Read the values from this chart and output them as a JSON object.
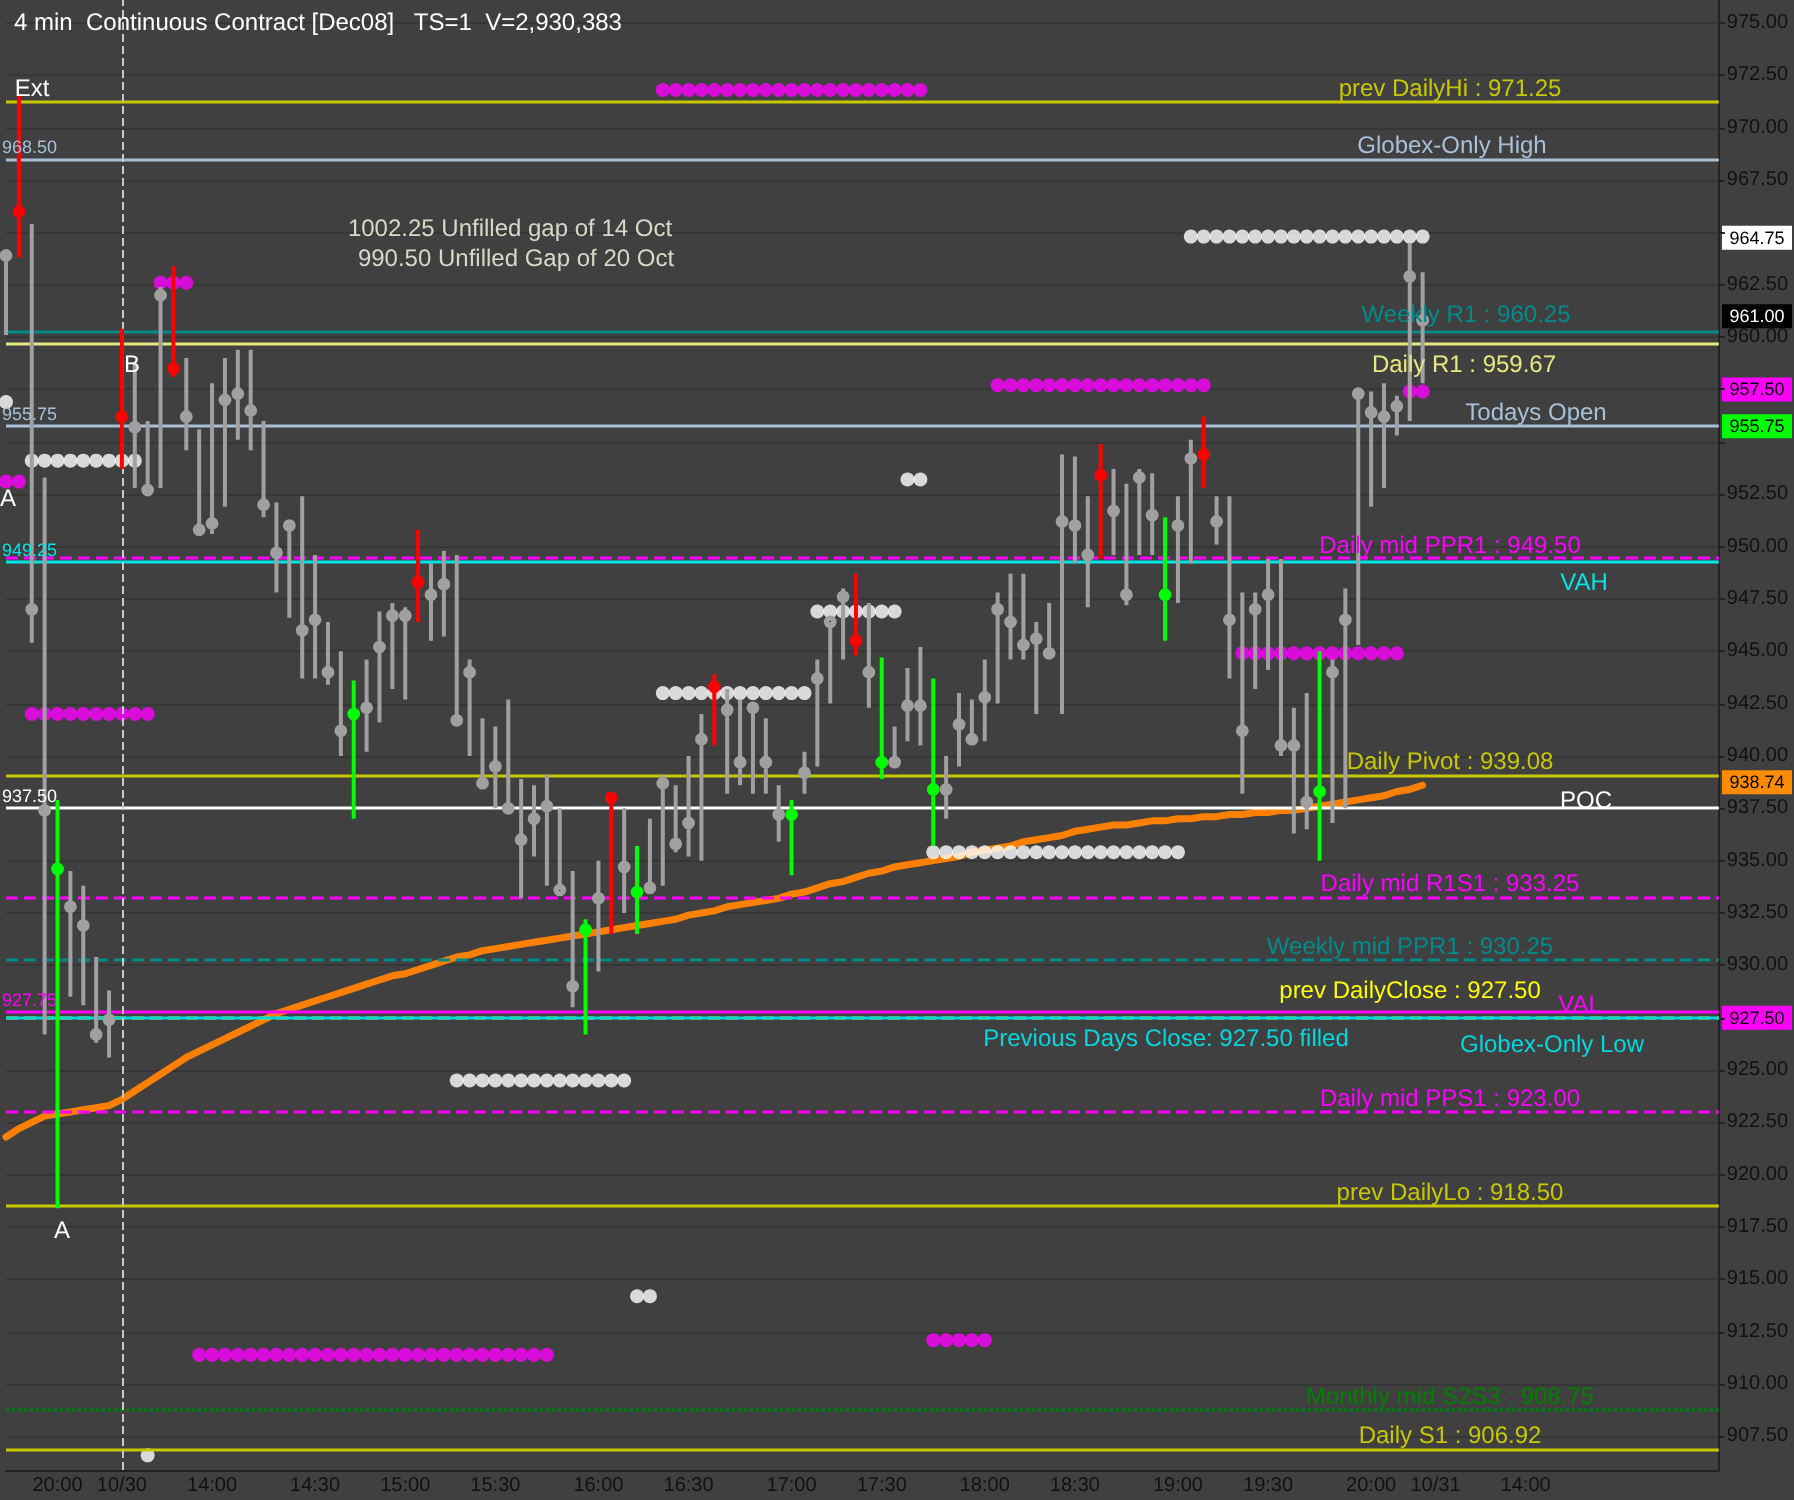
{
  "chart_data": {
    "type": "candlestick",
    "title": "4 min  Continuous Contract [Dec08]   TS=1  V=2,930,383",
    "categories": [
      null,
      null,
      null,
      null,
      "20:00",
      null,
      null,
      null,
      null,
      "10/30",
      null,
      null,
      null,
      null,
      null,
      null,
      "14:00",
      null,
      null,
      null,
      null,
      null,
      null,
      null,
      "14:30",
      null,
      null,
      null,
      null,
      null,
      null,
      "15:00",
      null,
      null,
      null,
      null,
      null,
      null,
      "15:30",
      null,
      null,
      null,
      null,
      null,
      null,
      null,
      "16:00",
      null,
      null,
      null,
      null,
      null,
      null,
      "16:30",
      null,
      null,
      null,
      null,
      null,
      null,
      null,
      "17:00",
      null,
      null,
      null,
      null,
      null,
      null,
      "17:30",
      null,
      null,
      null,
      null,
      null,
      null,
      null,
      "18:00",
      null,
      null,
      null,
      null,
      null,
      null,
      "18:30",
      null,
      null,
      null,
      null,
      null,
      null,
      null,
      "19:00",
      null,
      null,
      null,
      null,
      null,
      null,
      "19:30",
      null,
      null,
      null,
      null,
      null,
      null,
      null,
      "20:00",
      null,
      null,
      null,
      null,
      "10/31",
      null,
      null,
      null,
      null,
      null,
      null,
      "14:00",
      null,
      null,
      null,
      null,
      null,
      null,
      null,
      null,
      null,
      null,
      null,
      null,
      null,
      null,
      null
    ],
    "series": [
      {
        "ohlc": [
          [
            963.9,
            964.0,
            960.1,
            963.9
          ],
          [
            966.0,
            971.6,
            963.8,
            966.0
          ],
          [
            947.0,
            965.4,
            945.4,
            947.0
          ],
          [
            937.4,
            953.3,
            926.7,
            937.4
          ],
          [
            934.6,
            937.9,
            918.4,
            934.6
          ],
          [
            932.8,
            934.5,
            928.5,
            932.8
          ],
          [
            931.9,
            933.8,
            928.1,
            931.9
          ],
          [
            926.7,
            930.4,
            926.3,
            926.7
          ],
          [
            927.4,
            928.8,
            925.6,
            927.4
          ],
          [
            956.2,
            960.4,
            953.7,
            956.2
          ],
          [
            955.7,
            958.8,
            952.8,
            955.7
          ],
          [
            952.7,
            956.0,
            952.6,
            952.7
          ],
          [
            962.0,
            962.4,
            952.8,
            962.0
          ],
          [
            958.5,
            963.4,
            958.1,
            958.5
          ],
          [
            956.2,
            959.0,
            954.6,
            956.2
          ],
          [
            950.8,
            955.6,
            950.6,
            950.8
          ],
          [
            951.1,
            957.8,
            950.6,
            951.1
          ],
          [
            957.0,
            959.0,
            951.9,
            957.0
          ],
          [
            957.3,
            959.4,
            955.1,
            957.3
          ],
          [
            956.5,
            959.4,
            954.6,
            956.5
          ],
          [
            952.0,
            956.0,
            951.4,
            952.0
          ],
          [
            949.7,
            952.1,
            947.8,
            949.7
          ],
          [
            951.0,
            951.2,
            946.6,
            951.0
          ],
          [
            946.0,
            952.4,
            943.7,
            946.0
          ],
          [
            946.5,
            949.6,
            943.7,
            946.5
          ],
          [
            944.0,
            946.4,
            943.4,
            944.0
          ],
          [
            941.2,
            945.0,
            940.0,
            941.2
          ],
          [
            942.0,
            943.6,
            937.0,
            942.0
          ],
          [
            942.3,
            944.6,
            940.2,
            942.3
          ],
          [
            945.2,
            946.9,
            941.6,
            945.2
          ],
          [
            946.7,
            947.3,
            943.2,
            946.7
          ],
          [
            946.7,
            947.1,
            942.7,
            946.7
          ],
          [
            948.3,
            950.8,
            946.4,
            948.3
          ],
          [
            947.7,
            949.2,
            945.5,
            947.7
          ],
          [
            948.2,
            949.8,
            945.7,
            948.2
          ],
          [
            941.7,
            949.6,
            941.4,
            941.7
          ],
          [
            944.0,
            944.6,
            940.0,
            944.0
          ],
          [
            938.7,
            941.8,
            938.6,
            938.7
          ],
          [
            939.5,
            941.4,
            937.5,
            939.5
          ],
          [
            937.5,
            942.7,
            937.3,
            937.5
          ],
          [
            936.0,
            938.9,
            933.2,
            936.0
          ],
          [
            937.0,
            938.6,
            935.2,
            937.0
          ],
          [
            937.6,
            939.1,
            933.8,
            937.6
          ],
          [
            933.6,
            937.5,
            933.6,
            933.6
          ],
          [
            929.0,
            934.5,
            928.0,
            929.0
          ],
          [
            931.7,
            932.2,
            926.7,
            931.7
          ],
          [
            933.2,
            935.0,
            929.7,
            933.2
          ],
          [
            938.0,
            938.2,
            931.5,
            938.0
          ],
          [
            934.7,
            937.5,
            932.5,
            934.7
          ],
          [
            933.5,
            935.7,
            931.5,
            933.5
          ],
          [
            933.7,
            937.0,
            933.5,
            933.7
          ],
          [
            938.7,
            939.1,
            933.8,
            938.7
          ],
          [
            935.8,
            938.6,
            935.4,
            935.8
          ],
          [
            936.8,
            940.0,
            935.2,
            936.8
          ],
          [
            940.8,
            942.0,
            935.0,
            940.8
          ],
          [
            943.3,
            943.9,
            940.5,
            943.3
          ],
          [
            942.2,
            943.2,
            938.2,
            942.2
          ],
          [
            939.7,
            942.7,
            938.6,
            939.7
          ],
          [
            942.3,
            942.5,
            938.2,
            942.3
          ],
          [
            939.7,
            941.8,
            938.2,
            939.7
          ],
          [
            937.2,
            938.6,
            935.9,
            937.2
          ],
          [
            937.2,
            937.9,
            934.3,
            937.2
          ],
          [
            939.2,
            940.2,
            938.2,
            939.2
          ],
          [
            943.7,
            944.6,
            939.5,
            943.7
          ],
          [
            946.4,
            946.4,
            942.5,
            946.4
          ],
          [
            947.6,
            948.0,
            944.6,
            947.6
          ],
          [
            945.5,
            948.7,
            944.8,
            945.5
          ],
          [
            944.0,
            947.3,
            942.3,
            944.0
          ],
          [
            939.7,
            944.7,
            938.9,
            939.7
          ],
          [
            939.7,
            941.4,
            939.5,
            939.7
          ],
          [
            942.4,
            944.2,
            940.7,
            942.4
          ],
          [
            942.4,
            945.2,
            940.5,
            942.4
          ],
          [
            938.4,
            943.7,
            935.7,
            938.4
          ],
          [
            938.4,
            940.0,
            937.0,
            938.4
          ],
          [
            941.5,
            943.0,
            939.5,
            941.5
          ],
          [
            940.8,
            942.7,
            940.5,
            940.8
          ],
          [
            942.8,
            944.6,
            940.7,
            942.8
          ],
          [
            947.0,
            947.8,
            942.5,
            947.0
          ],
          [
            946.4,
            948.7,
            944.6,
            946.4
          ],
          [
            945.3,
            948.7,
            944.6,
            945.3
          ],
          [
            945.6,
            946.4,
            942.0,
            945.6
          ],
          [
            944.9,
            947.3,
            944.8,
            944.9
          ],
          [
            951.2,
            954.4,
            942.0,
            951.2
          ],
          [
            951.0,
            954.3,
            949.2,
            951.0
          ],
          [
            949.6,
            952.4,
            947.1,
            949.6
          ],
          [
            953.4,
            954.9,
            949.4,
            953.4
          ],
          [
            951.7,
            953.7,
            949.6,
            951.7
          ],
          [
            947.7,
            953.0,
            947.2,
            947.7
          ],
          [
            953.3,
            953.7,
            949.6,
            953.3
          ],
          [
            951.5,
            953.5,
            949.6,
            951.5
          ],
          [
            947.7,
            951.4,
            945.5,
            947.7
          ],
          [
            951.0,
            952.4,
            947.3,
            951.0
          ],
          [
            954.2,
            955.1,
            949.2,
            954.2
          ],
          [
            954.4,
            956.2,
            952.8,
            954.4
          ],
          [
            951.2,
            952.4,
            950.1,
            951.2
          ],
          [
            946.5,
            952.4,
            943.7,
            946.5
          ],
          [
            941.2,
            947.8,
            938.2,
            941.2
          ],
          [
            947.0,
            947.8,
            943.2,
            947.0
          ],
          [
            947.7,
            949.4,
            944.1,
            947.7
          ],
          [
            940.5,
            949.4,
            940.0,
            940.5
          ],
          [
            940.5,
            942.3,
            936.3,
            940.5
          ],
          [
            937.8,
            943.0,
            936.5,
            937.8
          ],
          [
            938.3,
            945.0,
            935.0,
            938.3
          ],
          [
            944.0,
            944.6,
            936.8,
            944.0
          ],
          [
            946.5,
            948.0,
            937.5,
            946.5
          ],
          [
            957.3,
            957.4,
            945.3,
            957.3
          ],
          [
            956.4,
            957.4,
            951.9,
            956.4
          ],
          [
            956.2,
            957.8,
            952.8,
            956.2
          ],
          [
            956.7,
            957.2,
            955.3,
            956.7
          ],
          [
            962.9,
            964.5,
            956.0,
            962.9
          ],
          [
            960.8,
            963.1,
            957.8,
            960.8
          ],
          null,
          null,
          null,
          null,
          null,
          null,
          null,
          null,
          null,
          null,
          null,
          null,
          null,
          null,
          null,
          null,
          null,
          null,
          null,
          null,
          null,
          null,
          null
        ],
        "colors": [
          "#a0a0a0",
          "#ff0000",
          "#a0a0a0",
          "#a0a0a0",
          "#00ff00",
          "#a0a0a0",
          "#a0a0a0",
          "#a0a0a0",
          "#a0a0a0",
          "#ff0000",
          "#a0a0a0",
          "#a0a0a0",
          "#a0a0a0",
          "#ff0000",
          "#a0a0a0",
          "#a0a0a0",
          "#a0a0a0",
          "#a0a0a0",
          "#a0a0a0",
          "#a0a0a0",
          "#a0a0a0",
          "#a0a0a0",
          "#a0a0a0",
          "#a0a0a0",
          "#a0a0a0",
          "#a0a0a0",
          "#a0a0a0",
          "#00ff00",
          "#a0a0a0",
          "#a0a0a0",
          "#a0a0a0",
          "#a0a0a0",
          "#ff0000",
          "#a0a0a0",
          "#a0a0a0",
          "#a0a0a0",
          "#a0a0a0",
          "#a0a0a0",
          "#a0a0a0",
          "#a0a0a0",
          "#a0a0a0",
          "#a0a0a0",
          "#a0a0a0",
          "#a0a0a0",
          "#a0a0a0",
          "#00ff00",
          "#a0a0a0",
          "#ff0000",
          "#a0a0a0",
          "#00ff00",
          "#a0a0a0",
          "#a0a0a0",
          "#a0a0a0",
          "#a0a0a0",
          "#a0a0a0",
          "#ff0000",
          "#a0a0a0",
          "#a0a0a0",
          "#a0a0a0",
          "#a0a0a0",
          "#a0a0a0",
          "#00ff00",
          "#a0a0a0",
          "#a0a0a0",
          "#a0a0a0",
          "#a0a0a0",
          "#ff0000",
          "#a0a0a0",
          "#00ff00",
          "#a0a0a0",
          "#a0a0a0",
          "#a0a0a0",
          "#00ff00",
          "#a0a0a0",
          "#a0a0a0",
          "#a0a0a0",
          "#a0a0a0",
          "#a0a0a0",
          "#a0a0a0",
          "#a0a0a0",
          "#a0a0a0",
          "#a0a0a0",
          "#a0a0a0",
          "#a0a0a0",
          "#a0a0a0",
          "#ff0000",
          "#a0a0a0",
          "#a0a0a0",
          "#a0a0a0",
          "#a0a0a0",
          "#00ff00",
          "#a0a0a0",
          "#a0a0a0",
          "#ff0000",
          "#a0a0a0",
          "#a0a0a0",
          "#a0a0a0",
          "#a0a0a0",
          "#a0a0a0",
          "#a0a0a0",
          "#a0a0a0",
          "#a0a0a0",
          "#00ff00",
          "#a0a0a0",
          "#a0a0a0",
          "#a0a0a0",
          "#a0a0a0",
          "#a0a0a0",
          "#a0a0a0",
          "#a0a0a0",
          "#a0a0a0",
          null,
          null,
          null,
          null,
          null,
          null,
          null,
          null,
          null,
          null,
          null,
          null,
          null,
          null,
          null,
          null,
          null,
          null,
          null,
          null,
          null,
          null,
          null
        ]
      },
      {
        "type": "line",
        "color": "#ff8000",
        "marker": "none",
        "values": [
          921.8,
          922.2,
          922.5,
          922.8,
          922.9,
          923.0,
          923.1,
          923.2,
          923.3,
          923.6,
          924.0,
          924.4,
          924.8,
          925.2,
          925.6,
          925.9,
          926.2,
          926.5,
          926.8,
          927.1,
          927.4,
          927.7,
          927.9,
          928.1,
          928.3,
          928.5,
          928.7,
          928.9,
          929.1,
          929.3,
          929.5,
          929.6,
          929.8,
          930.0,
          930.2,
          930.4,
          930.5,
          930.7,
          930.8,
          930.9,
          931.0,
          931.1,
          931.2,
          931.3,
          931.4,
          931.5,
          931.6,
          931.7,
          931.8,
          931.9,
          932.0,
          932.1,
          932.2,
          932.4,
          932.5,
          932.6,
          932.8,
          932.9,
          933.0,
          933.1,
          933.2,
          933.4,
          933.5,
          933.7,
          933.9,
          934.0,
          934.2,
          934.4,
          934.5,
          934.7,
          934.8,
          934.9,
          935.0,
          935.1,
          935.2,
          935.4,
          935.5,
          935.6,
          935.7,
          935.9,
          936.0,
          936.1,
          936.2,
          936.4,
          936.5,
          936.6,
          936.7,
          936.7,
          936.8,
          936.9,
          936.9,
          937.0,
          937.0,
          937.1,
          937.1,
          937.2,
          937.2,
          937.3,
          937.3,
          937.4,
          937.4,
          937.5,
          937.6,
          937.7,
          937.8,
          937.9,
          938.0,
          938.1,
          938.3,
          938.4,
          938.6,
          null,
          null,
          null,
          null,
          null,
          null,
          null,
          null,
          null,
          null,
          null,
          null,
          null,
          null,
          null,
          null,
          null,
          null,
          null,
          null,
          null,
          null,
          null
        ]
      },
      {
        "type": "scatter",
        "color": "#ffffff",
        "marker": "circle",
        "values": [
          956.9,
          null,
          954.1,
          954.1,
          954.1,
          954.1,
          954.1,
          954.1,
          954.1,
          954.1,
          954.1,
          906.6,
          null,
          null,
          null,
          null,
          null,
          null,
          null,
          null,
          null,
          null,
          null,
          null,
          null,
          null,
          null,
          null,
          null,
          null,
          null,
          null,
          null,
          null,
          null,
          924.5,
          924.5,
          924.5,
          924.5,
          924.5,
          924.5,
          924.5,
          924.5,
          924.5,
          924.5,
          924.5,
          924.5,
          924.5,
          924.5,
          914.2,
          914.2,
          943.0,
          943.0,
          943.0,
          943.0,
          943.0,
          943.0,
          943.0,
          943.0,
          943.0,
          943.0,
          943.0,
          943.0,
          946.9,
          946.9,
          946.9,
          946.9,
          946.9,
          946.9,
          946.9,
          953.2,
          953.2,
          935.4,
          935.4,
          935.4,
          935.4,
          935.4,
          935.4,
          935.4,
          935.4,
          935.4,
          935.4,
          935.4,
          935.4,
          935.4,
          935.4,
          935.4,
          935.4,
          935.4,
          935.4,
          935.4,
          935.4,
          964.8,
          964.8,
          964.8,
          964.8,
          964.8,
          964.8,
          964.8,
          964.8,
          964.8,
          964.8,
          964.8,
          964.8,
          964.8,
          964.8,
          964.8,
          964.8,
          964.8,
          964.8,
          964.8,
          null,
          null,
          null,
          null,
          null,
          null,
          null,
          null,
          null,
          null,
          null,
          null,
          null,
          null,
          null,
          null,
          null,
          null,
          null,
          null,
          null,
          null,
          null
        ]
      },
      {
        "type": "scatter",
        "color": "#ff00ff",
        "marker": "circle",
        "values": [
          953.1,
          953.1,
          942.0,
          942.0,
          942.0,
          942.0,
          942.0,
          942.0,
          942.0,
          942.0,
          942.0,
          942.0,
          962.6,
          962.6,
          962.6,
          911.4,
          911.4,
          911.4,
          911.4,
          911.4,
          911.4,
          911.4,
          911.4,
          911.4,
          911.4,
          911.4,
          911.4,
          911.4,
          911.4,
          911.4,
          911.4,
          911.4,
          911.4,
          911.4,
          911.4,
          911.4,
          911.4,
          911.4,
          911.4,
          911.4,
          911.4,
          911.4,
          911.4,
          null,
          null,
          null,
          null,
          null,
          null,
          null,
          null,
          971.8,
          971.8,
          971.8,
          971.8,
          971.8,
          971.8,
          971.8,
          971.8,
          971.8,
          971.8,
          971.8,
          971.8,
          971.8,
          971.8,
          971.8,
          971.8,
          971.8,
          971.8,
          971.8,
          971.8,
          971.8,
          912.1,
          912.1,
          912.1,
          912.1,
          912.1,
          957.7,
          957.7,
          957.7,
          957.7,
          957.7,
          957.7,
          957.7,
          957.7,
          957.7,
          957.7,
          957.7,
          957.7,
          957.7,
          957.7,
          957.7,
          957.7,
          957.7,
          null,
          null,
          944.9,
          944.9,
          944.9,
          944.9,
          944.9,
          944.9,
          944.9,
          944.9,
          944.9,
          944.9,
          944.9,
          944.9,
          944.9,
          957.4,
          957.4,
          null,
          null,
          null,
          null,
          null,
          null,
          null,
          null,
          null,
          null,
          null,
          null,
          null,
          null,
          null,
          null,
          null,
          null,
          null,
          null,
          null,
          null,
          null
        ]
      }
    ],
    "ylim": [
      905.9,
      976.1
    ],
    "yticks": [
      {
        "value": 907.5,
        "label": "907.50"
      },
      {
        "value": 910,
        "label": "910.00"
      },
      {
        "value": 912.5,
        "label": "912.50"
      },
      {
        "value": 915,
        "label": "915.00"
      },
      {
        "value": 917.5,
        "label": "917.50"
      },
      {
        "value": 920,
        "label": "920.00"
      },
      {
        "value": 922.5,
        "label": "922.50"
      },
      {
        "value": 925,
        "label": "925.00"
      },
      {
        "value": 927.5,
        "label": null
      },
      {
        "value": 930,
        "label": "930.00"
      },
      {
        "value": 932.5,
        "label": "932.50"
      },
      {
        "value": 935,
        "label": "935.00"
      },
      {
        "value": 937.5,
        "label": "937.50"
      },
      {
        "value": 940,
        "label": "940.00"
      },
      {
        "value": 942.5,
        "label": "942.50"
      },
      {
        "value": 945,
        "label": "945.00"
      },
      {
        "value": 947.5,
        "label": "947.50"
      },
      {
        "value": 950,
        "label": "950.00"
      },
      {
        "value": 952.5,
        "label": "952.50"
      },
      {
        "value": 955,
        "label": null
      },
      {
        "value": 957.5,
        "label": null
      },
      {
        "value": 960,
        "label": "960.00"
      },
      {
        "value": 962.5,
        "label": "962.50"
      },
      {
        "value": 965,
        "label": null
      },
      {
        "value": 967.5,
        "label": "967.50"
      },
      {
        "value": 970,
        "label": "970.00"
      },
      {
        "value": 972.5,
        "label": "972.50"
      },
      {
        "value": 975,
        "label": "975.00"
      }
    ],
    "grid": "y",
    "ref_lines": [
      {
        "axis": "y",
        "value": 971.25,
        "label": "prev DailyHi : 971.25",
        "color": "#c8c800",
        "line_style": "solid"
      },
      {
        "axis": "y",
        "value": 968.5,
        "label": "Globex-Only High",
        "color": "#a8c0d8",
        "line_style": "solid"
      },
      {
        "axis": "y",
        "value": 960.25,
        "label": "Weekly R1 : 960.25",
        "color": "#008b8b",
        "line_style": "solid"
      },
      {
        "axis": "y",
        "value": 959.67,
        "label": "Daily R1 : 959.67",
        "color": "#e8e880",
        "line_style": "solid"
      },
      {
        "axis": "y",
        "value": 955.75,
        "label": "Todays Open",
        "color": "#a8c0d8",
        "line_style": "solid"
      },
      {
        "axis": "y",
        "value": 949.5,
        "label": "Daily mid PPR1 : 949.50",
        "color": "#ff00ff",
        "line_style": "dashed"
      },
      {
        "axis": "y",
        "value": 949.25,
        "label": "VAH",
        "color": "#00e5e5",
        "line_style": "solid"
      },
      {
        "axis": "y",
        "value": 939.08,
        "label": "Daily Pivot : 939.08",
        "color": "#c8c800",
        "line_style": "solid"
      },
      {
        "axis": "y",
        "value": 937.5,
        "label": "POC",
        "color": "#ffffff",
        "line_style": "solid"
      },
      {
        "axis": "y",
        "value": 933.25,
        "label": "Daily mid R1S1 : 933.25",
        "color": "#ff00ff",
        "line_style": "dashed"
      },
      {
        "axis": "y",
        "value": 930.25,
        "label": "Weekly mid PPR1 : 930.25",
        "color": "#008b8b",
        "line_style": "dashed"
      },
      {
        "axis": "y",
        "value": 927.5,
        "label": "prev DailyClose : 927.50",
        "color": "#ffff00",
        "line_style": "dashed"
      },
      {
        "axis": "y",
        "value": 927.75,
        "label": "VAL",
        "color": "#ff00ff",
        "line_style": "solid"
      },
      {
        "axis": "y",
        "value": 927.5,
        "label": "Globex-Only Low",
        "color": "#00d8e0",
        "line_style": "solid"
      },
      {
        "axis": "y",
        "value": 923.0,
        "label": "Daily mid PPS1 : 923.00",
        "color": "#ff00ff",
        "line_style": "dashed"
      },
      {
        "axis": "y",
        "value": 918.5,
        "label": "prev DailyLo : 918.50",
        "color": "#c8c800",
        "line_style": "solid"
      },
      {
        "axis": "y",
        "value": 908.75,
        "label": "Monthly mid S2S3 : 908.75",
        "color": "#008000",
        "line_style": "dotted"
      },
      {
        "axis": "y",
        "value": 906.92,
        "label": "Daily S1 : 906.92",
        "color": "#c8c800",
        "line_style": "solid"
      },
      {
        "axis": "x",
        "value": "10/30",
        "label": null,
        "color": "#c8c8c8",
        "line_style": "dashed"
      }
    ],
    "annotations": [
      "1002.25 Unfilled gap of 14 Oct",
      "990.50 Unfilled Gap of 20 Oct",
      "Previous Days Close: 927.50 filled",
      "Ext",
      "B",
      "A",
      "A",
      {
        "text": "968.50",
        "y": 968.5
      },
      {
        "text": "955.75",
        "y": 955.75
      },
      {
        "text": "949.25",
        "y": 949.25
      },
      {
        "text": "937.50",
        "y": 937.5
      },
      {
        "text": "927.75",
        "y": 927.75
      },
      {
        "text": "964.75",
        "y": 964.75
      },
      {
        "text": "961.00",
        "y": 961.0
      },
      {
        "text": "957.50",
        "y": 957.5
      },
      {
        "text": "955.75",
        "y": 955.75
      },
      {
        "text": "938.74",
        "y": 938.74
      },
      {
        "text": "927.50",
        "y": 927.5
      }
    ]
  }
}
